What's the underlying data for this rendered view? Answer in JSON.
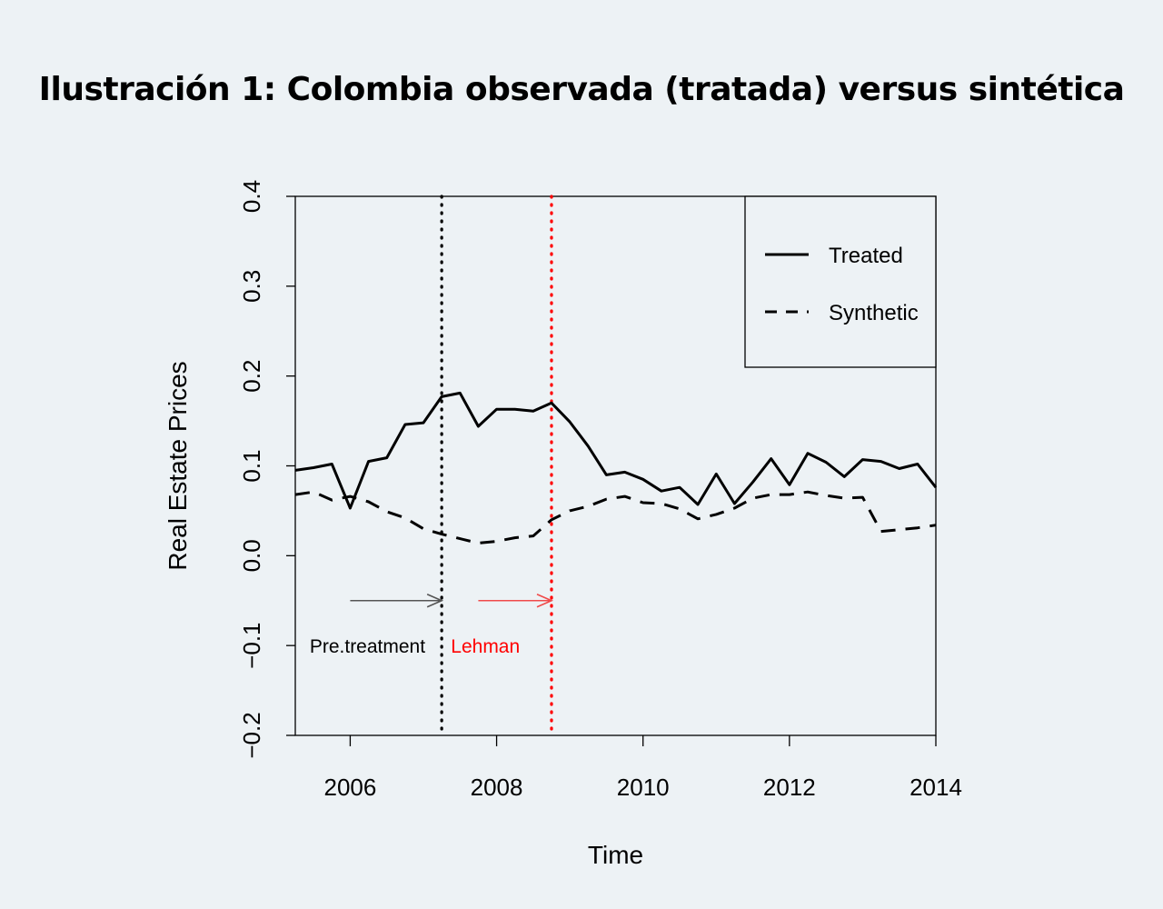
{
  "figure": {
    "title": "Ilustración 1: Colombia observada (tratada) versus sintética"
  },
  "chart_data": {
    "type": "line",
    "xlabel": "Time",
    "ylabel": "Real Estate Prices",
    "xlim": [
      2005.25,
      2014.0
    ],
    "ylim": [
      -0.2,
      0.4
    ],
    "xticks": [
      2006,
      2008,
      2010,
      2012,
      2014
    ],
    "yticks": [
      -0.2,
      -0.1,
      0.0,
      0.1,
      0.2,
      0.3,
      0.4
    ],
    "ytick_labels": [
      "−0.2",
      "−0.1",
      "0.0",
      "0.1",
      "0.2",
      "0.3",
      "0.4"
    ],
    "grid": false,
    "legend_position": "top-right",
    "series": [
      {
        "name": "Treated",
        "style": "solid",
        "color": "#000000",
        "x": [
          2005.25,
          2005.5,
          2005.75,
          2006.0,
          2006.25,
          2006.5,
          2006.75,
          2007.0,
          2007.25,
          2007.5,
          2007.75,
          2008.0,
          2008.25,
          2008.5,
          2008.75,
          2009.0,
          2009.25,
          2009.5,
          2009.75,
          2010.0,
          2010.25,
          2010.5,
          2010.75,
          2011.0,
          2011.25,
          2011.5,
          2011.75,
          2012.0,
          2012.25,
          2012.5,
          2012.75,
          2013.0,
          2013.25,
          2013.5,
          2013.75,
          2014.0
        ],
        "values": [
          0.095,
          0.098,
          0.102,
          0.053,
          0.105,
          0.109,
          0.146,
          0.148,
          0.177,
          0.181,
          0.144,
          0.163,
          0.163,
          0.161,
          0.17,
          0.149,
          0.122,
          0.09,
          0.093,
          0.085,
          0.072,
          0.076,
          0.057,
          0.091,
          0.058,
          0.082,
          0.108,
          0.079,
          0.114,
          0.104,
          0.088,
          0.107,
          0.105,
          0.097,
          0.102,
          0.076
        ]
      },
      {
        "name": "Synthetic",
        "style": "dashed",
        "color": "#000000",
        "x": [
          2005.25,
          2005.5,
          2005.75,
          2006.0,
          2006.25,
          2006.5,
          2006.75,
          2007.0,
          2007.25,
          2007.5,
          2007.75,
          2008.0,
          2008.25,
          2008.5,
          2008.75,
          2009.0,
          2009.25,
          2009.5,
          2009.75,
          2010.0,
          2010.25,
          2010.5,
          2010.75,
          2011.0,
          2011.25,
          2011.5,
          2011.75,
          2012.0,
          2012.25,
          2012.5,
          2012.75,
          2013.0,
          2013.25,
          2013.5,
          2013.75,
          2014.0
        ],
        "values": [
          0.068,
          0.071,
          0.062,
          0.066,
          0.06,
          0.049,
          0.042,
          0.03,
          0.024,
          0.019,
          0.014,
          0.016,
          0.02,
          0.022,
          0.04,
          0.05,
          0.055,
          0.063,
          0.066,
          0.059,
          0.058,
          0.052,
          0.041,
          0.046,
          0.053,
          0.064,
          0.068,
          0.068,
          0.071,
          0.067,
          0.064,
          0.065,
          0.027,
          0.029,
          0.031,
          0.034
        ]
      }
    ],
    "vlines": [
      {
        "x": 2007.25,
        "color": "#000000",
        "style": "dotted"
      },
      {
        "x": 2008.75,
        "color": "#ff0000",
        "style": "dotted"
      }
    ],
    "annotations": [
      {
        "text": "Pre.treatment",
        "color": "#000000",
        "arrow_from_x": 2006.0,
        "arrow_to_x": 2007.25,
        "arrow_y": -0.05,
        "text_anchor_x": 2007.15,
        "text_y": -0.1
      },
      {
        "text": "Lehman",
        "color": "#ff0000",
        "arrow_from_x": 2007.75,
        "arrow_to_x": 2008.75,
        "arrow_y": -0.05,
        "text_anchor_x": 2007.5,
        "text_y": -0.1
      }
    ]
  }
}
